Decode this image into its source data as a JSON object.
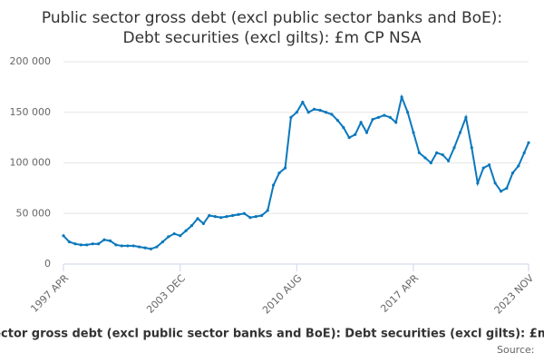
{
  "chart_data": {
    "type": "line",
    "title": [
      "Public sector gross debt (excl public sector banks and BoE):",
      "Debt securities (excl gilts): £m CP NSA"
    ],
    "source": "Source:",
    "x": [
      1997.25,
      1997.58,
      1997.92,
      1998.25,
      1998.58,
      1998.92,
      1999.25,
      1999.58,
      1999.92,
      2000.25,
      2000.58,
      2000.92,
      2001.25,
      2001.58,
      2001.92,
      2002.25,
      2002.58,
      2002.92,
      2003.25,
      2003.58,
      2003.92,
      2004.25,
      2004.58,
      2004.92,
      2005.25,
      2005.58,
      2005.92,
      2006.25,
      2006.58,
      2006.92,
      2007.25,
      2007.58,
      2007.92,
      2008.25,
      2008.58,
      2008.92,
      2009.25,
      2009.58,
      2009.92,
      2010.25,
      2010.58,
      2010.92,
      2011.25,
      2011.58,
      2011.92,
      2012.25,
      2012.58,
      2012.92,
      2013.25,
      2013.58,
      2013.92,
      2014.25,
      2014.58,
      2014.92,
      2015.25,
      2015.58,
      2015.92,
      2016.25,
      2016.58,
      2016.92,
      2017.25,
      2017.58,
      2017.92,
      2018.25,
      2018.58,
      2018.92,
      2019.25,
      2019.58,
      2019.92,
      2020.25,
      2020.58,
      2020.92,
      2021.25,
      2021.58,
      2021.92,
      2022.25,
      2022.58,
      2022.92,
      2023.25,
      2023.58,
      2023.83
    ],
    "series": [
      {
        "name": "Public sector gross debt (excl public sector banks and BoE): Debt securities (excl gilts): £m CP NSA",
        "color": "#0b78bd",
        "values": [
          28000,
          22000,
          20000,
          19000,
          19000,
          20000,
          20000,
          24000,
          23000,
          19000,
          18000,
          18000,
          18000,
          17000,
          16000,
          15000,
          17000,
          22000,
          27000,
          30000,
          28000,
          33000,
          38000,
          45000,
          40000,
          48000,
          47000,
          46000,
          47000,
          48000,
          49000,
          50000,
          46000,
          47000,
          48000,
          53000,
          78000,
          90000,
          95000,
          145000,
          150000,
          160000,
          150000,
          153000,
          152000,
          150000,
          148000,
          142000,
          135000,
          125000,
          128000,
          140000,
          130000,
          143000,
          145000,
          147000,
          145000,
          140000,
          165000,
          150000,
          130000,
          110000,
          105000,
          100000,
          110000,
          108000,
          102000,
          115000,
          130000,
          145000,
          115000,
          80000,
          95000,
          98000,
          80000,
          72000,
          75000,
          90000,
          97000,
          110000,
          120000
        ]
      }
    ],
    "xlim": [
      1997.25,
      2023.83
    ],
    "xticks": [
      {
        "value": 1997.25,
        "label": "1997 APR"
      },
      {
        "value": 2003.92,
        "label": "2003 DEC"
      },
      {
        "value": 2010.58,
        "label": "2010 AUG"
      },
      {
        "value": 2017.25,
        "label": "2017 APR"
      },
      {
        "value": 2023.83,
        "label": "2023 NOV"
      }
    ],
    "ylim": [
      0,
      200000
    ],
    "yticks": [
      0,
      {
        "value": 50000,
        "label": "50 000"
      },
      {
        "value": 100000,
        "label": "100 000"
      },
      {
        "value": 150000,
        "label": "150 000"
      },
      {
        "value": 200000,
        "label": "200 000"
      }
    ],
    "grid": true
  }
}
